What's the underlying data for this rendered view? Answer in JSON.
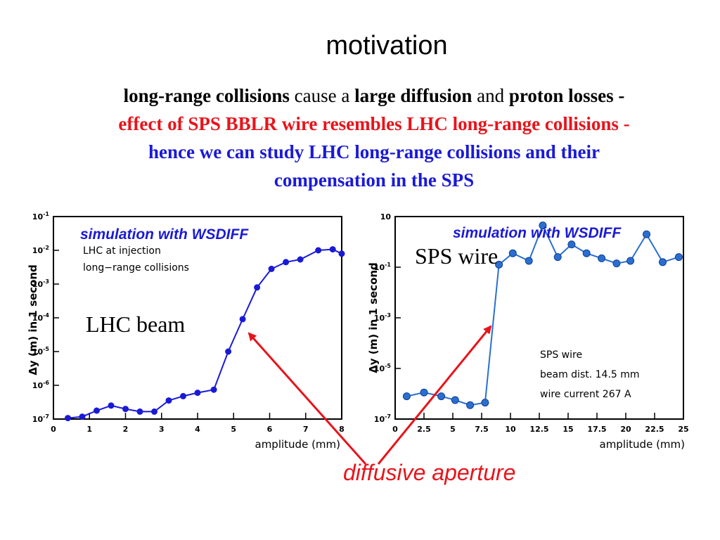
{
  "title": "motivation",
  "statement": {
    "line1": [
      "long-range collisions",
      " cause a ",
      "large diffusion",
      " and ",
      "proton losses",
      " -"
    ],
    "line2": "effect of SPS BBLR wire resembles LHC long-range collisions -",
    "line3": "hence we can study LHC long-range collisions and their",
    "line4": "compensation in the SPS"
  },
  "colors": {
    "red": "#e8141b",
    "blue": "#1a1ad6",
    "chart_line_left": "#1a1ad6",
    "chart_line_right": "#2a6fd0"
  },
  "annotation": "diffusive aperture",
  "chart_data": [
    {
      "type": "line",
      "overlay_title": "simulation with WSDIFF",
      "inner_lines": [
        "LHC at injection",
        "long−range collisions"
      ],
      "big_label": "LHC beam",
      "xlabel": "amplitude (mm)",
      "ylabel": "Δy (m) in 1 second",
      "x_ticks": [
        "0",
        "1",
        "2",
        "3",
        "4",
        "5",
        "6",
        "7",
        "8"
      ],
      "y_ticks": [
        {
          "base": "10",
          "exp": "-1"
        },
        {
          "base": "10",
          "exp": "-2"
        },
        {
          "base": "10",
          "exp": "-3"
        },
        {
          "base": "10",
          "exp": "-4"
        },
        {
          "base": "10",
          "exp": "-5"
        },
        {
          "base": "10",
          "exp": "-6"
        },
        {
          "base": "10",
          "exp": "-7"
        }
      ],
      "xlim": [
        0,
        8
      ],
      "ylim_log10": [
        -7,
        -1
      ],
      "y_log": true,
      "x": [
        0.4,
        0.8,
        1.2,
        1.6,
        2.0,
        2.4,
        2.8,
        3.2,
        3.6,
        4.0,
        4.45,
        4.85,
        5.25,
        5.65,
        6.05,
        6.45,
        6.85,
        7.35,
        7.75,
        8.0
      ],
      "y_log10": [
        -6.97,
        -6.93,
        -6.75,
        -6.6,
        -6.7,
        -6.78,
        -6.78,
        -6.45,
        -6.32,
        -6.22,
        -6.13,
        -5.0,
        -4.04,
        -3.1,
        -2.55,
        -2.35,
        -2.27,
        -2.0,
        -1.97,
        -2.1
      ]
    },
    {
      "type": "line",
      "overlay_title": "simulation with WSDIFF",
      "inner_lines": [
        "SPS wire",
        "beam dist. 14.5 mm",
        "wire current 267 A"
      ],
      "big_label": "SPS wire",
      "xlabel": "amplitude (mm)",
      "ylabel": "Δy (m) in 1 second",
      "x_ticks": [
        "0",
        "2.5",
        "5",
        "7.5",
        "10",
        "12.5",
        "15",
        "17.5",
        "20",
        "22.5",
        "25"
      ],
      "y_ticks": [
        {
          "base": "10",
          "exp": ""
        },
        {
          "base": "10",
          "exp": "-1"
        },
        {
          "base": "10",
          "exp": "-3"
        },
        {
          "base": "10",
          "exp": "-5"
        },
        {
          "base": "10",
          "exp": "-7"
        }
      ],
      "xlim": [
        0,
        25
      ],
      "ylim_log10": [
        -7,
        1
      ],
      "y_log": true,
      "x": [
        1.0,
        2.5,
        4.0,
        5.2,
        6.5,
        7.8,
        9.0,
        10.2,
        11.6,
        12.8,
        14.1,
        15.3,
        16.6,
        17.9,
        19.2,
        20.4,
        21.8,
        23.2,
        24.6
      ],
      "y_log10": [
        -6.1,
        -5.95,
        -6.1,
        -6.25,
        -6.45,
        -6.35,
        -0.9,
        -0.45,
        -0.75,
        0.65,
        -0.6,
        -0.1,
        -0.45,
        -0.65,
        -0.85,
        -0.75,
        0.3,
        -0.8,
        -0.6
      ]
    }
  ]
}
